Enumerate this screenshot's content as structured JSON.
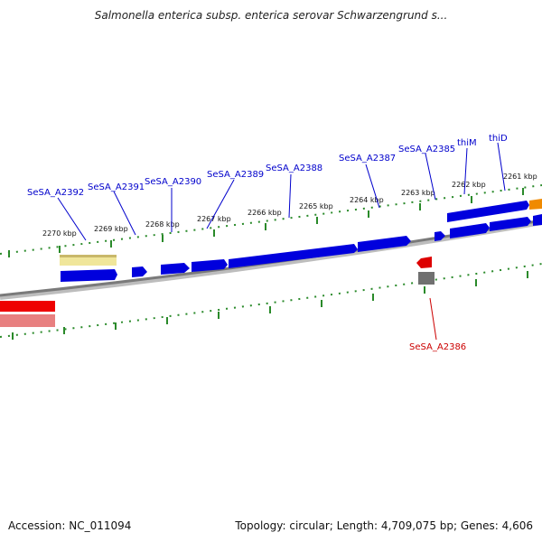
{
  "title": "Salmonella enterica subsp. enterica serovar Schwarzengrund s...",
  "footer": {
    "accession": "Accession: NC_011094",
    "summary": "Topology: circular; Length: 4,709,075 bp; Genes: 4,606"
  },
  "colors": {
    "forward_gene": "#0000dd",
    "reverse_gene": "#dd0000",
    "forward_label": "#0000cc",
    "reverse_label": "#cc0000",
    "tick": "#2a8a2a",
    "backbone": "#808080",
    "highlight_orange": "#f08a00",
    "highlight_yellow": "#f0e69a",
    "gray_feature": "#707070",
    "pink_feature": "#e88080"
  },
  "ticks": [
    "2261 kbp",
    "2262 kbp",
    "2263 kbp",
    "2264 kbp",
    "2265 kbp",
    "2266 kbp",
    "2267 kbp",
    "2268 kbp",
    "2269 kbp",
    "2270 kbp"
  ],
  "genes_forward": [
    "SeSA_A2392",
    "SeSA_A2391",
    "SeSA_A2390",
    "SeSA_A2389",
    "SeSA_A2388",
    "SeSA_A2387",
    "SeSA_A2385",
    "thiM",
    "thiD"
  ],
  "genes_reverse": [
    "SeSA_A2386"
  ]
}
